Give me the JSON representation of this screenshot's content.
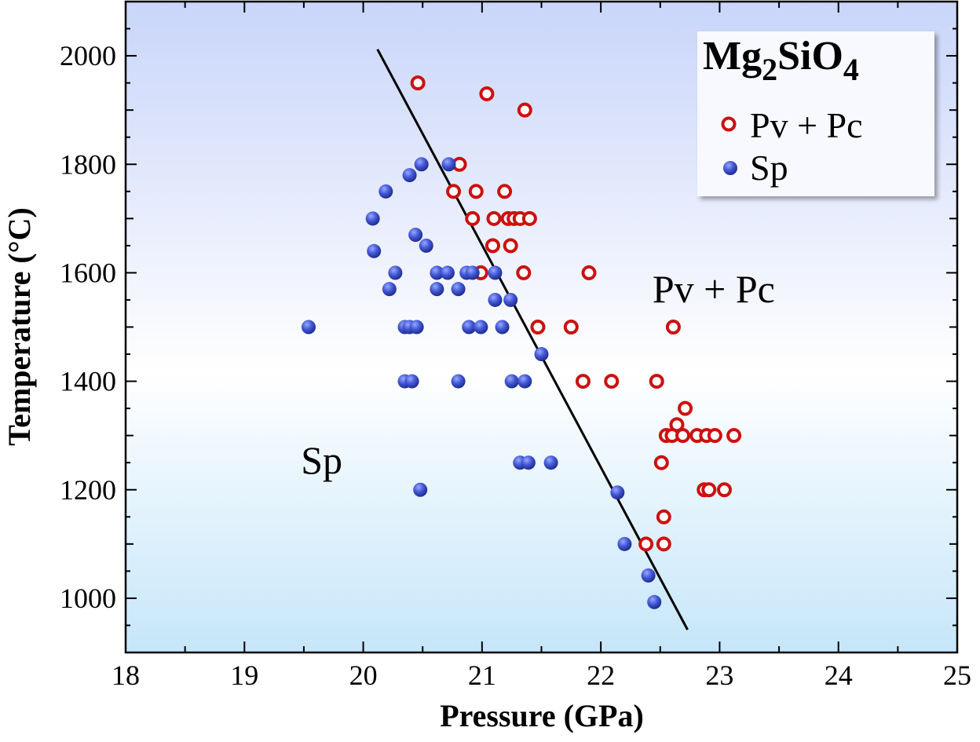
{
  "chart_data": {
    "type": "scatter",
    "title": "Mg2SiO4",
    "title_parts": {
      "a": "Mg",
      "b": "2",
      "c": "SiO",
      "d": "4"
    },
    "xlabel": "Pressure  (GPa)",
    "ylabel": "Temperature (°C)",
    "xlim": [
      18,
      25
    ],
    "ylim": [
      900,
      2100
    ],
    "xticks": [
      18,
      19,
      20,
      21,
      22,
      23,
      24,
      25
    ],
    "yticks": [
      1000,
      1200,
      1400,
      1600,
      1800,
      2000
    ],
    "grid": false,
    "legend_position": "top-right",
    "colors": {
      "pv_pc": "#cc1010",
      "sp": "#3a4fc8",
      "line": "#000000",
      "bg_top": "#c9d5fa",
      "bg_mid": "#ffffff",
      "bg_bottom": "#c6e6fa"
    },
    "series": [
      {
        "name": "Pv + Pc",
        "marker": "open-circle",
        "points": [
          [
            20.46,
            1950
          ],
          [
            21.04,
            1930
          ],
          [
            21.36,
            1900
          ],
          [
            20.81,
            1800
          ],
          [
            20.76,
            1750
          ],
          [
            20.95,
            1750
          ],
          [
            21.19,
            1750
          ],
          [
            20.92,
            1700
          ],
          [
            21.1,
            1700
          ],
          [
            21.22,
            1700
          ],
          [
            21.27,
            1700
          ],
          [
            21.32,
            1700
          ],
          [
            21.4,
            1700
          ],
          [
            21.09,
            1650
          ],
          [
            21.24,
            1650
          ],
          [
            20.99,
            1600
          ],
          [
            21.35,
            1600
          ],
          [
            21.9,
            1600
          ],
          [
            21.47,
            1500
          ],
          [
            21.75,
            1500
          ],
          [
            22.61,
            1500
          ],
          [
            21.85,
            1400
          ],
          [
            22.09,
            1400
          ],
          [
            22.47,
            1400
          ],
          [
            22.71,
            1350
          ],
          [
            22.64,
            1320
          ],
          [
            22.55,
            1300
          ],
          [
            22.6,
            1300
          ],
          [
            22.69,
            1300
          ],
          [
            22.81,
            1300
          ],
          [
            22.89,
            1300
          ],
          [
            22.96,
            1300
          ],
          [
            23.12,
            1300
          ],
          [
            22.51,
            1250
          ],
          [
            22.87,
            1200
          ],
          [
            22.91,
            1200
          ],
          [
            23.04,
            1200
          ],
          [
            22.53,
            1150
          ],
          [
            22.38,
            1100
          ],
          [
            22.53,
            1100
          ]
        ]
      },
      {
        "name": "Sp",
        "marker": "filled-sphere",
        "points": [
          [
            20.49,
            1800
          ],
          [
            20.72,
            1800
          ],
          [
            20.39,
            1780
          ],
          [
            20.19,
            1750
          ],
          [
            20.08,
            1700
          ],
          [
            20.44,
            1670
          ],
          [
            20.53,
            1650
          ],
          [
            20.09,
            1640
          ],
          [
            20.27,
            1600
          ],
          [
            20.62,
            1600
          ],
          [
            20.71,
            1600
          ],
          [
            20.87,
            1600
          ],
          [
            20.92,
            1600
          ],
          [
            21.11,
            1600
          ],
          [
            20.22,
            1570
          ],
          [
            20.62,
            1570
          ],
          [
            20.8,
            1570
          ],
          [
            21.11,
            1550
          ],
          [
            21.24,
            1550
          ],
          [
            19.54,
            1500
          ],
          [
            20.35,
            1500
          ],
          [
            20.39,
            1500
          ],
          [
            20.45,
            1500
          ],
          [
            20.89,
            1500
          ],
          [
            20.99,
            1500
          ],
          [
            21.17,
            1500
          ],
          [
            21.5,
            1450
          ],
          [
            20.35,
            1400
          ],
          [
            20.41,
            1400
          ],
          [
            20.8,
            1400
          ],
          [
            21.25,
            1400
          ],
          [
            21.36,
            1400
          ],
          [
            21.32,
            1250
          ],
          [
            21.39,
            1250
          ],
          [
            21.58,
            1250
          ],
          [
            20.48,
            1200
          ],
          [
            22.14,
            1195
          ],
          [
            22.2,
            1100
          ],
          [
            22.4,
            1042
          ],
          [
            22.45,
            993
          ]
        ]
      }
    ],
    "boundary_line": [
      [
        20.12,
        2012
      ],
      [
        22.73,
        942
      ]
    ],
    "annotations": [
      {
        "text": "Pv + Pc",
        "x": 22.95,
        "y": 1570
      },
      {
        "text": "Sp",
        "x": 19.65,
        "y": 1255
      }
    ]
  }
}
